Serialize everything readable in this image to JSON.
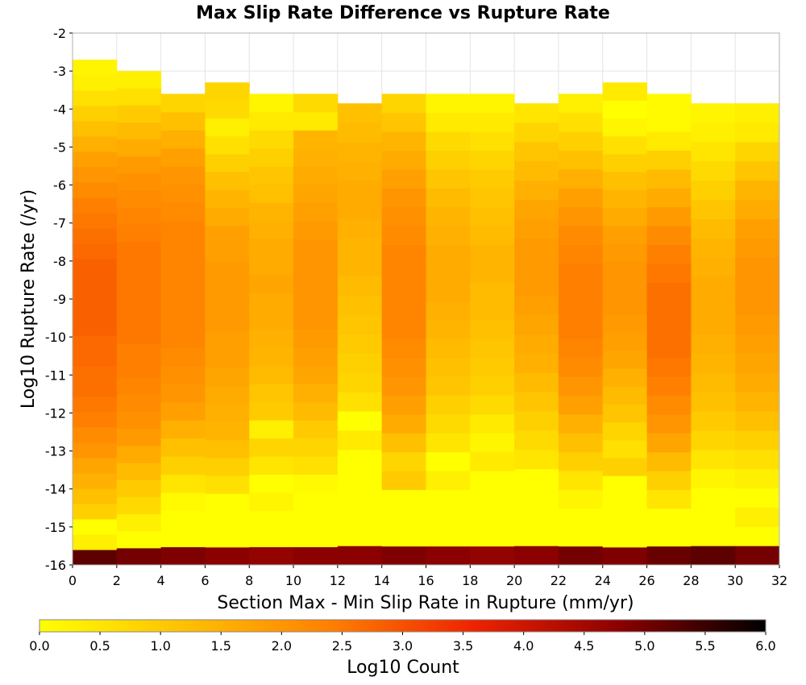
{
  "chart_data": {
    "type": "heatmap",
    "title": "Max Slip Rate Difference vs Rupture Rate",
    "xlabel": "Section Max - Min Slip Rate in Rupture (mm/yr)",
    "ylabel": "Log10 Rupture Rate (/yr)",
    "xlim": [
      0,
      32
    ],
    "ylim": [
      -16,
      -2
    ],
    "x_ticks": [
      "0",
      "2",
      "4",
      "6",
      "8",
      "10",
      "12",
      "14",
      "16",
      "18",
      "20",
      "22",
      "24",
      "26",
      "28",
      "30",
      "32"
    ],
    "y_ticks": [
      "-2",
      "-3",
      "-4",
      "-5",
      "-6",
      "-7",
      "-8",
      "-9",
      "-10",
      "-11",
      "-12",
      "-13",
      "-14",
      "-15",
      "-16"
    ],
    "grid": true,
    "colorbar": {
      "label": "Log10 Count",
      "range": [
        0.0,
        6.0
      ],
      "ticks": [
        "0.0",
        "0.5",
        "1.0",
        "1.5",
        "2.0",
        "2.5",
        "3.0",
        "3.5",
        "4.0",
        "4.5",
        "5.0",
        "5.5",
        "6.0"
      ],
      "colors": [
        "#ffff00",
        "#ffc000",
        "#ff8000",
        "#ee2200",
        "#8b0000",
        "#000000"
      ]
    },
    "x_bin_width": 2,
    "y_bin_height": 0.5,
    "columns": [
      {
        "x_start": 0,
        "y_bottom": -16,
        "y_top": -2.7,
        "values": [
          5.2,
          0.3,
          0.0,
          0.9,
          1.2,
          1.5,
          1.7,
          2.0,
          2.2,
          2.4,
          2.5,
          2.6,
          2.6,
          2.7,
          2.7,
          2.8,
          2.8,
          2.8,
          2.8,
          2.8,
          2.7,
          2.6,
          2.5,
          2.4,
          2.2,
          2.0,
          1.8,
          1.5,
          1.2,
          0.9,
          0.6,
          0.3,
          0.2
        ]
      },
      {
        "x_start": 2,
        "y_bottom": -16,
        "y_top": -3.0,
        "values": [
          5.0,
          0.0,
          0.3,
          0.7,
          1.0,
          1.3,
          1.6,
          1.9,
          2.1,
          2.2,
          2.3,
          2.4,
          2.4,
          2.5,
          2.5,
          2.5,
          2.5,
          2.5,
          2.5,
          2.4,
          2.3,
          2.2,
          2.1,
          1.9,
          1.6,
          1.3,
          1.0,
          0.6,
          0.3
        ]
      },
      {
        "x_start": 4,
        "y_bottom": -16,
        "y_top": -3.6,
        "values": [
          4.9,
          0.0,
          0.0,
          0.1,
          0.5,
          0.9,
          1.2,
          1.5,
          1.8,
          2.0,
          2.1,
          2.2,
          2.3,
          2.3,
          2.3,
          2.3,
          2.3,
          2.3,
          2.3,
          2.2,
          2.1,
          2.0,
          1.8,
          1.5,
          1.2,
          0.8
        ]
      },
      {
        "x_start": 6,
        "y_bottom": -16,
        "y_top": -3.3,
        "values": [
          4.8,
          0.0,
          0.0,
          0.0,
          0.6,
          0.9,
          1.2,
          1.4,
          1.5,
          1.6,
          1.7,
          1.8,
          1.8,
          1.9,
          1.9,
          1.9,
          1.9,
          1.8,
          1.8,
          1.6,
          1.4,
          1.2,
          0.9,
          0.6,
          0.3,
          0.7,
          0.8
        ]
      },
      {
        "x_start": 8,
        "y_bottom": -16,
        "y_top": -3.6,
        "values": [
          4.7,
          0.0,
          0.0,
          0.2,
          0.0,
          0.5,
          0.8,
          0.3,
          1.0,
          1.1,
          1.3,
          1.4,
          1.5,
          1.6,
          1.6,
          1.7,
          1.6,
          1.6,
          1.5,
          1.4,
          1.2,
          1.1,
          0.9,
          0.7,
          0.4,
          0.2
        ]
      },
      {
        "x_start": 10,
        "y_bottom": -16,
        "y_top": -3.6,
        "values": [
          4.8,
          0.0,
          0.0,
          0.0,
          0.1,
          0.6,
          0.8,
          1.0,
          1.3,
          1.5,
          1.7,
          1.8,
          1.9,
          2.0,
          2.0,
          2.0,
          2.0,
          2.0,
          1.9,
          1.8,
          1.7,
          1.6,
          1.5,
          1.4,
          0.4,
          0.7
        ]
      },
      {
        "x_start": 12,
        "y_bottom": -16,
        "y_top": -3.85,
        "values": [
          4.8,
          0.0,
          0.0,
          0.0,
          0.0,
          0.0,
          0.4,
          0.0,
          0.6,
          0.8,
          0.9,
          1.0,
          1.1,
          1.2,
          1.3,
          1.4,
          1.4,
          1.5,
          1.6,
          1.6,
          1.5,
          1.4,
          1.3,
          1.2
        ]
      },
      {
        "x_start": 14,
        "y_bottom": -16,
        "y_top": -3.6,
        "values": [
          4.9,
          0.0,
          0.0,
          0.0,
          1.0,
          0.8,
          1.2,
          1.6,
          1.8,
          2.0,
          2.1,
          2.2,
          2.3,
          2.3,
          2.3,
          2.3,
          2.3,
          2.2,
          2.1,
          2.0,
          1.8,
          1.6,
          1.4,
          1.1,
          0.8
        ]
      },
      {
        "x_start": 16,
        "y_bottom": -16,
        "y_top": -3.6,
        "values": [
          4.8,
          0.0,
          0.0,
          0.0,
          0.3,
          0.0,
          0.5,
          0.7,
          0.9,
          1.1,
          1.2,
          1.3,
          1.4,
          1.5,
          1.6,
          1.6,
          1.6,
          1.5,
          1.4,
          1.3,
          1.1,
          0.9,
          0.7,
          0.4,
          0.2
        ]
      },
      {
        "x_start": 18,
        "y_bottom": -16,
        "y_top": -3.6,
        "values": [
          4.7,
          0.0,
          0.0,
          0.0,
          0.0,
          0.4,
          0.2,
          0.4,
          0.7,
          0.9,
          1.0,
          1.1,
          1.2,
          1.3,
          1.3,
          1.4,
          1.4,
          1.3,
          1.2,
          1.1,
          1.0,
          0.8,
          0.6,
          0.4,
          0.2
        ]
      },
      {
        "x_start": 20,
        "y_bottom": -16,
        "y_top": -3.85,
        "values": [
          4.8,
          0.0,
          0.0,
          0.0,
          0.0,
          0.5,
          0.7,
          0.9,
          1.1,
          1.3,
          1.5,
          1.6,
          1.7,
          1.8,
          1.9,
          1.9,
          1.9,
          1.8,
          1.7,
          1.5,
          1.3,
          1.1,
          0.8,
          0.5
        ]
      },
      {
        "x_start": 22,
        "y_bottom": -16,
        "y_top": -3.6,
        "values": [
          5.0,
          0.0,
          0.0,
          0.2,
          0.5,
          0.9,
          1.2,
          1.5,
          1.8,
          2.0,
          2.2,
          2.3,
          2.4,
          2.4,
          2.4,
          2.4,
          2.3,
          2.2,
          2.0,
          1.8,
          1.5,
          1.2,
          0.9,
          0.6,
          0.3
        ]
      },
      {
        "x_start": 24,
        "y_bottom": -16,
        "y_top": -3.3,
        "values": [
          4.9,
          0.0,
          0.0,
          0.0,
          0.0,
          0.9,
          0.6,
          0.8,
          1.1,
          1.3,
          1.5,
          1.7,
          1.8,
          1.9,
          2.0,
          2.0,
          2.0,
          1.9,
          1.8,
          1.6,
          1.4,
          1.2,
          0.9,
          0.6,
          0.2,
          0.0,
          0.4
        ]
      },
      {
        "x_start": 26,
        "y_bottom": -16,
        "y_top": -3.6,
        "values": [
          5.1,
          0.0,
          0.0,
          0.5,
          0.9,
          1.3,
          1.7,
          2.0,
          2.2,
          2.4,
          2.5,
          2.6,
          2.6,
          2.6,
          2.6,
          2.5,
          2.4,
          2.2,
          1.9,
          1.6,
          1.3,
          0.9,
          0.4,
          0.1,
          0.1
        ]
      },
      {
        "x_start": 28,
        "y_bottom": -16,
        "y_top": -3.85,
        "values": [
          5.2,
          0.0,
          0.0,
          0.0,
          0.2,
          0.5,
          0.8,
          1.0,
          1.2,
          1.3,
          1.4,
          1.5,
          1.6,
          1.6,
          1.6,
          1.5,
          1.4,
          1.3,
          1.1,
          0.9,
          0.7,
          0.5,
          0.3,
          0.2
        ]
      },
      {
        "x_start": 30,
        "y_bottom": -16,
        "y_top": -3.85,
        "values": [
          5.0,
          0.0,
          0.3,
          0.0,
          0.3,
          0.6,
          0.9,
          1.2,
          1.4,
          1.6,
          1.7,
          1.8,
          1.9,
          2.0,
          2.0,
          2.0,
          1.9,
          1.8,
          1.6,
          1.4,
          1.1,
          0.8,
          0.4,
          0.3
        ]
      }
    ]
  }
}
